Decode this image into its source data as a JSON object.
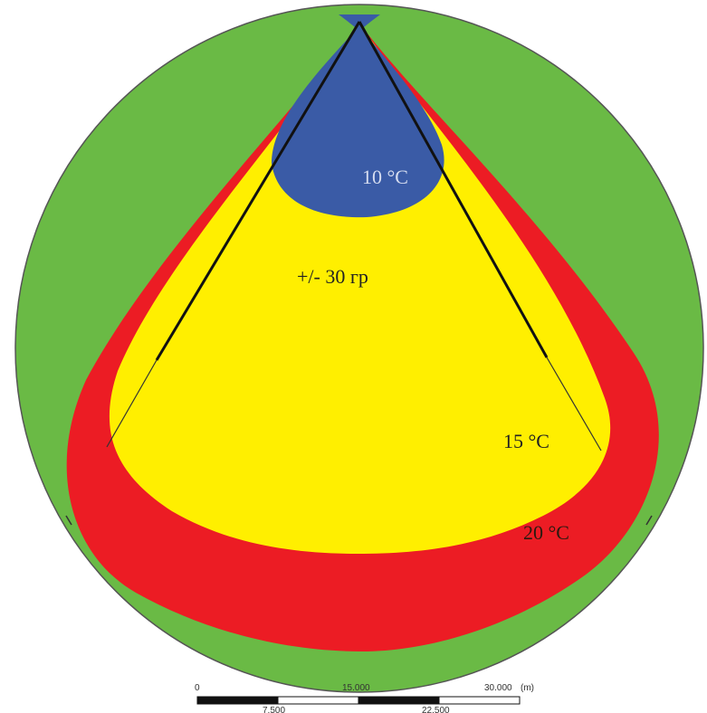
{
  "zones": [
    {
      "id": "green",
      "color": "#6aba45"
    },
    {
      "id": "red",
      "label": "20 °C",
      "color": "#ec1c24"
    },
    {
      "id": "yellow",
      "label": "15 °C",
      "color": "#ffef00"
    },
    {
      "id": "blue",
      "label": "10 °C",
      "color": "#3a5ba6"
    }
  ],
  "angle_label": "+/- 30 гр",
  "label_colors": {
    "blue_zone_text": "#d6ddf0",
    "yellow_zone_text": "#222222",
    "red_zone_text": "#2a1a10"
  },
  "scale_bar": {
    "top_labels": [
      "0",
      "15.000",
      "30.000"
    ],
    "unit": "(m)",
    "bottom_labels": [
      "7.500",
      "22.500"
    ]
  }
}
